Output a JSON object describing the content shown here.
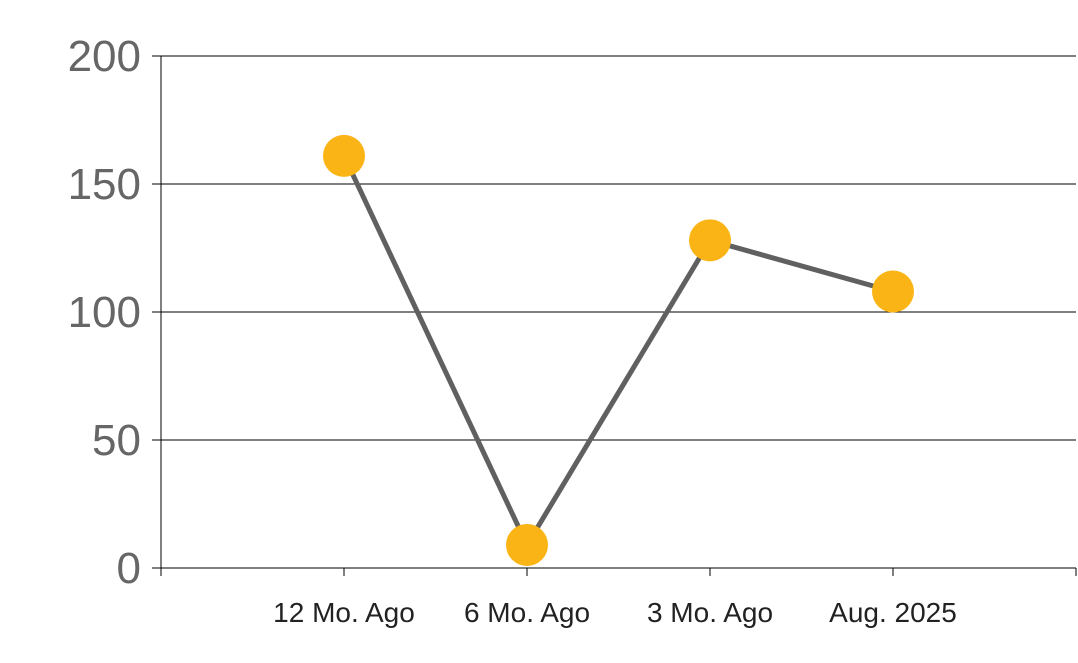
{
  "chart_data": {
    "type": "line",
    "title": "",
    "xlabel": "",
    "ylabel": "",
    "categories": [
      "12 Mo. Ago",
      "6 Mo. Ago",
      "3 Mo. Ago",
      "Aug. 2025"
    ],
    "series": [
      {
        "values": [
          161,
          9,
          128,
          108
        ]
      }
    ],
    "ylim": [
      0,
      200
    ],
    "yticks": [
      0,
      50,
      100,
      150,
      200
    ],
    "grid": true,
    "legend": "none",
    "colors": {
      "line": "#606060",
      "marker": "#FBB416",
      "grid": "#000000",
      "axis_text": "#666666",
      "category_text": "#222222"
    }
  }
}
